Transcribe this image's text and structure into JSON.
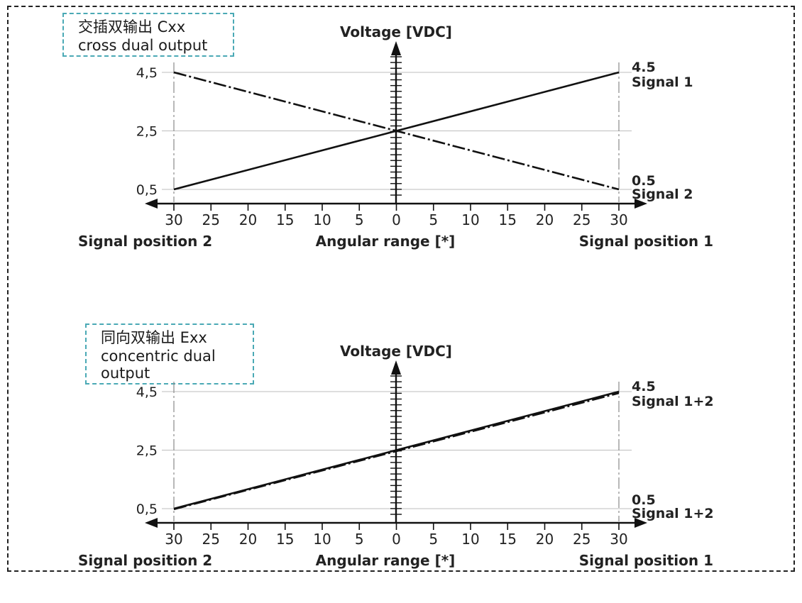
{
  "charts": [
    {
      "label_line1": "交插双输出 Cxx",
      "label_line2": "cross dual output"
    },
    {
      "label_line1": "同向双输出 Exx",
      "label_line2": "concentric dual output"
    }
  ],
  "chart_data": [
    {
      "type": "line",
      "title": "",
      "ylabel": "Voltage [VDC]",
      "xlabel": "Angular range [*]",
      "x_left_label": "Signal position 2",
      "x_right_label": "Signal position 1",
      "x": [
        -30,
        30
      ],
      "xlim": [
        -30,
        30
      ],
      "ylim": [
        0.5,
        4.5
      ],
      "x_tick_labels": [
        "30",
        "25",
        "20",
        "15",
        "10",
        "5",
        "0",
        "5",
        "10",
        "15",
        "20",
        "25",
        "30"
      ],
      "y_tick_labels": [
        "0,5",
        "2,5",
        "4,5"
      ],
      "right_labels": [
        {
          "value": "4.5",
          "text": "Signal 1"
        },
        {
          "value": "0.5",
          "text": "Signal 2"
        }
      ],
      "series": [
        {
          "name": "Signal 1",
          "x": [
            -30,
            30
          ],
          "y": [
            0.5,
            4.5
          ],
          "style": "solid"
        },
        {
          "name": "Signal 2",
          "x": [
            -30,
            30
          ],
          "y": [
            4.5,
            0.5
          ],
          "style": "dash-dot"
        }
      ],
      "grid": true
    },
    {
      "type": "line",
      "title": "",
      "ylabel": "Voltage [VDC]",
      "xlabel": "Angular range [*]",
      "x_left_label": "Signal position 2",
      "x_right_label": "Signal position 1",
      "x": [
        -30,
        30
      ],
      "xlim": [
        -30,
        30
      ],
      "ylim": [
        0.5,
        4.5
      ],
      "x_tick_labels": [
        "30",
        "25",
        "20",
        "15",
        "10",
        "5",
        "0",
        "5",
        "10",
        "15",
        "20",
        "25",
        "30"
      ],
      "y_tick_labels": [
        "0,5",
        "2,5",
        "4,5"
      ],
      "right_labels": [
        {
          "value": "4.5",
          "text": "Signal 1+2"
        },
        {
          "value": "0.5",
          "text": "Signal 1+2"
        }
      ],
      "series": [
        {
          "name": "Signal 1+2",
          "x": [
            -30,
            30
          ],
          "y": [
            0.5,
            4.5
          ],
          "style": "solid"
        },
        {
          "name": "Signal 1+2",
          "x": [
            -30,
            30
          ],
          "y": [
            0.48,
            4.45
          ],
          "style": "dash-dot"
        }
      ],
      "grid": true
    }
  ]
}
